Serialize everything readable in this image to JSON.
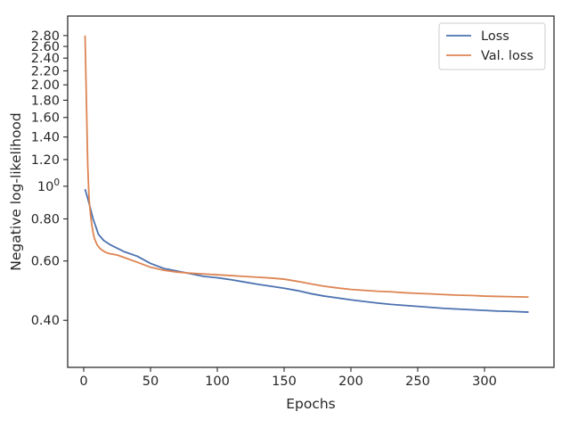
{
  "chart_data": {
    "type": "line",
    "title": "",
    "xlabel": "Epochs",
    "ylabel": "Negative log-likelihood",
    "xlim": [
      -12,
      352
    ],
    "ylim": [
      0.29,
      3.2
    ],
    "y_scale": "log",
    "grid": false,
    "legend_position": "top-right",
    "x_ticks": [
      {
        "value": 0,
        "label": "0"
      },
      {
        "value": 50,
        "label": "50"
      },
      {
        "value": 100,
        "label": "100"
      },
      {
        "value": 150,
        "label": "150"
      },
      {
        "value": 200,
        "label": "200"
      },
      {
        "value": 250,
        "label": "250"
      },
      {
        "value": 300,
        "label": "300"
      }
    ],
    "y_ticks": [
      {
        "value": 0.4,
        "label": "0.40"
      },
      {
        "value": 0.6,
        "label": "0.60"
      },
      {
        "value": 0.8,
        "label": "0.80"
      },
      {
        "value": 1.0,
        "label": "10",
        "sup": "0"
      },
      {
        "value": 1.2,
        "label": "1.20"
      },
      {
        "value": 1.4,
        "label": "1.40"
      },
      {
        "value": 1.6,
        "label": "1.60"
      },
      {
        "value": 1.8,
        "label": "1.80"
      },
      {
        "value": 2.0,
        "label": "2.00"
      },
      {
        "value": 2.2,
        "label": "2.20"
      },
      {
        "value": 2.4,
        "label": "2.40"
      },
      {
        "value": 2.6,
        "label": "2.60"
      },
      {
        "value": 2.8,
        "label": "2.80"
      }
    ],
    "series": [
      {
        "name": "Loss",
        "color": "#4c72b0",
        "x": [
          1,
          3,
          5,
          7,
          9,
          11,
          13,
          15,
          20,
          25,
          30,
          40,
          50,
          60,
          70,
          80,
          90,
          100,
          110,
          120,
          130,
          140,
          150,
          160,
          170,
          180,
          190,
          200,
          210,
          220,
          230,
          240,
          250,
          260,
          270,
          280,
          290,
          300,
          310,
          320,
          333
        ],
        "y": [
          0.98,
          0.92,
          0.86,
          0.8,
          0.76,
          0.72,
          0.705,
          0.69,
          0.67,
          0.655,
          0.64,
          0.62,
          0.59,
          0.57,
          0.56,
          0.55,
          0.54,
          0.535,
          0.528,
          0.52,
          0.512,
          0.505,
          0.498,
          0.49,
          0.48,
          0.472,
          0.466,
          0.46,
          0.455,
          0.45,
          0.446,
          0.443,
          0.44,
          0.437,
          0.434,
          0.432,
          0.43,
          0.428,
          0.426,
          0.425,
          0.423
        ]
      },
      {
        "name": "Val. loss",
        "color": "#dd8452",
        "x": [
          1,
          2,
          3,
          4,
          5,
          6,
          7,
          8,
          9,
          10,
          12,
          14,
          16,
          18,
          20,
          25,
          30,
          40,
          50,
          60,
          70,
          80,
          90,
          100,
          110,
          120,
          130,
          140,
          150,
          160,
          170,
          180,
          190,
          200,
          210,
          220,
          230,
          240,
          250,
          260,
          270,
          280,
          290,
          300,
          310,
          320,
          333
        ],
        "y": [
          2.8,
          1.8,
          1.15,
          0.92,
          0.83,
          0.77,
          0.73,
          0.7,
          0.685,
          0.67,
          0.655,
          0.645,
          0.638,
          0.633,
          0.63,
          0.625,
          0.615,
          0.595,
          0.575,
          0.563,
          0.556,
          0.552,
          0.549,
          0.546,
          0.543,
          0.54,
          0.537,
          0.534,
          0.53,
          0.522,
          0.513,
          0.505,
          0.499,
          0.494,
          0.491,
          0.488,
          0.486,
          0.483,
          0.481,
          0.479,
          0.477,
          0.475,
          0.474,
          0.472,
          0.471,
          0.47,
          0.469
        ]
      }
    ]
  }
}
